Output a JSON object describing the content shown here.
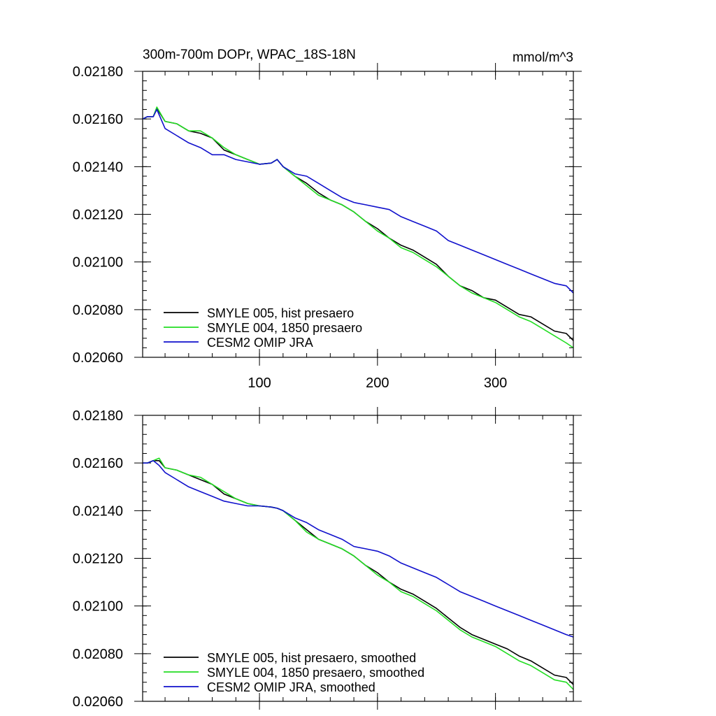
{
  "chart_data": [
    {
      "type": "line",
      "title": "300m-700m DOPr, WPAC_18S-18N",
      "units": "mmol/m^3",
      "xlim": [
        1,
        366
      ],
      "ylim": [
        0.0206,
        0.0218
      ],
      "x_ticks": [
        100,
        200,
        300
      ],
      "x_tick_labels": [
        "100",
        "200",
        "300"
      ],
      "y_ticks": [
        0.0206,
        0.0208,
        0.021,
        0.0212,
        0.0214,
        0.0216,
        0.0218
      ],
      "y_tick_labels": [
        "0.02060",
        "0.02080",
        "0.02100",
        "0.02120",
        "0.02140",
        "0.02160",
        "0.02180"
      ],
      "legend_position": "bottom-left",
      "series": [
        {
          "name": "SMYLE 005, hist presaero",
          "color": "#000000",
          "x": [
            1,
            5,
            10,
            13,
            20,
            30,
            40,
            50,
            60,
            70,
            80,
            90,
            100,
            110,
            115,
            120,
            130,
            140,
            150,
            160,
            170,
            180,
            190,
            200,
            210,
            220,
            230,
            240,
            250,
            260,
            270,
            280,
            290,
            300,
            310,
            320,
            330,
            340,
            350,
            360,
            366
          ],
          "values": [
            0.0216,
            0.02161,
            0.02161,
            0.021645,
            0.02159,
            0.02158,
            0.02155,
            0.02154,
            0.02152,
            0.02147,
            0.02145,
            0.02143,
            0.02141,
            0.021415,
            0.02143,
            0.0214,
            0.02136,
            0.02133,
            0.02129,
            0.02126,
            0.02124,
            0.02121,
            0.02117,
            0.02114,
            0.0211,
            0.02107,
            0.02105,
            0.02102,
            0.02099,
            0.02094,
            0.0209,
            0.02088,
            0.02085,
            0.02084,
            0.02081,
            0.02078,
            0.02077,
            0.02074,
            0.02071,
            0.0207,
            0.02067
          ]
        },
        {
          "name": "SMYLE 004, 1850 presaero",
          "color": "#22dd22",
          "x": [
            1,
            5,
            10,
            13,
            20,
            30,
            40,
            50,
            60,
            70,
            80,
            90,
            100,
            110,
            115,
            120,
            130,
            140,
            150,
            160,
            170,
            180,
            190,
            200,
            210,
            220,
            230,
            240,
            250,
            260,
            270,
            280,
            290,
            300,
            310,
            320,
            330,
            340,
            350,
            360,
            366
          ],
          "values": [
            0.0216,
            0.02161,
            0.02161,
            0.02165,
            0.02159,
            0.02158,
            0.02155,
            0.02155,
            0.02152,
            0.02148,
            0.02145,
            0.02143,
            0.02141,
            0.021415,
            0.02143,
            0.0214,
            0.02136,
            0.02132,
            0.02128,
            0.02126,
            0.02124,
            0.02121,
            0.02117,
            0.02113,
            0.0211,
            0.02106,
            0.02104,
            0.02101,
            0.02098,
            0.02094,
            0.0209,
            0.02087,
            0.02085,
            0.02083,
            0.0208,
            0.02077,
            0.02075,
            0.02072,
            0.02069,
            0.02066,
            0.02064
          ]
        },
        {
          "name": "CESM2 OMIP JRA",
          "color": "#1010cc",
          "x": [
            1,
            5,
            10,
            13,
            20,
            30,
            40,
            50,
            60,
            70,
            80,
            90,
            100,
            110,
            115,
            120,
            130,
            140,
            150,
            160,
            170,
            180,
            190,
            200,
            210,
            220,
            230,
            240,
            250,
            260,
            270,
            280,
            290,
            300,
            310,
            320,
            330,
            340,
            350,
            360,
            366
          ],
          "values": [
            0.0216,
            0.02161,
            0.02161,
            0.02164,
            0.02156,
            0.02153,
            0.0215,
            0.02148,
            0.02145,
            0.02145,
            0.02143,
            0.02142,
            0.02141,
            0.021415,
            0.02143,
            0.0214,
            0.02137,
            0.02136,
            0.02133,
            0.0213,
            0.02127,
            0.02125,
            0.02124,
            0.02123,
            0.02122,
            0.02119,
            0.02117,
            0.02115,
            0.02113,
            0.02109,
            0.02107,
            0.02105,
            0.02103,
            0.02101,
            0.02099,
            0.02097,
            0.02095,
            0.02093,
            0.02091,
            0.0209,
            0.02087
          ]
        }
      ]
    },
    {
      "type": "line",
      "xlim": [
        1,
        366
      ],
      "ylim": [
        0.0206,
        0.0218
      ],
      "x_ticks": [
        100,
        200,
        300
      ],
      "y_ticks": [
        0.0206,
        0.0208,
        0.021,
        0.0212,
        0.0214,
        0.0216,
        0.0218
      ],
      "y_tick_labels": [
        "0.02060",
        "0.02080",
        "0.02100",
        "0.02120",
        "0.02140",
        "0.02160",
        "0.02180"
      ],
      "legend_position": "bottom-left",
      "series": [
        {
          "name": "SMYLE 005, hist presaero, smoothed",
          "color": "#000000",
          "x": [
            1,
            5,
            10,
            15,
            20,
            30,
            40,
            50,
            60,
            70,
            80,
            90,
            100,
            110,
            115,
            120,
            130,
            140,
            150,
            160,
            170,
            180,
            190,
            200,
            210,
            220,
            230,
            240,
            250,
            260,
            270,
            280,
            290,
            300,
            310,
            320,
            330,
            340,
            350,
            360,
            366
          ],
          "values": [
            0.0216,
            0.0216,
            0.02161,
            0.02161,
            0.02158,
            0.02157,
            0.02155,
            0.02153,
            0.02151,
            0.02147,
            0.02145,
            0.02143,
            0.02142,
            0.021415,
            0.02141,
            0.0214,
            0.02136,
            0.02132,
            0.02128,
            0.02126,
            0.02124,
            0.02121,
            0.02117,
            0.02114,
            0.0211,
            0.02107,
            0.02105,
            0.02102,
            0.02099,
            0.02095,
            0.02091,
            0.02088,
            0.02086,
            0.02084,
            0.02082,
            0.02079,
            0.02077,
            0.02074,
            0.02071,
            0.0207,
            0.02067
          ]
        },
        {
          "name": "SMYLE 004, 1850 presaero, smoothed",
          "color": "#22dd22",
          "x": [
            1,
            5,
            10,
            15,
            20,
            30,
            40,
            50,
            60,
            70,
            80,
            90,
            100,
            110,
            115,
            120,
            130,
            140,
            150,
            160,
            170,
            180,
            190,
            200,
            210,
            220,
            230,
            240,
            250,
            260,
            270,
            280,
            290,
            300,
            310,
            320,
            330,
            340,
            350,
            360,
            366
          ],
          "values": [
            0.0216,
            0.0216,
            0.02161,
            0.02162,
            0.02158,
            0.02157,
            0.02155,
            0.02154,
            0.02151,
            0.02148,
            0.02145,
            0.02143,
            0.02142,
            0.021415,
            0.02141,
            0.0214,
            0.02136,
            0.02131,
            0.02128,
            0.02126,
            0.02124,
            0.02121,
            0.02117,
            0.02113,
            0.0211,
            0.02106,
            0.02104,
            0.02101,
            0.02098,
            0.02094,
            0.0209,
            0.02087,
            0.02085,
            0.02083,
            0.0208,
            0.02077,
            0.02075,
            0.02072,
            0.02069,
            0.02068,
            0.02065
          ]
        },
        {
          "name": "CESM2 OMIP JRA, smoothed",
          "color": "#1010cc",
          "x": [
            1,
            5,
            10,
            15,
            20,
            30,
            40,
            50,
            60,
            70,
            80,
            90,
            100,
            110,
            115,
            120,
            130,
            140,
            150,
            160,
            170,
            180,
            190,
            200,
            210,
            220,
            230,
            240,
            250,
            260,
            270,
            280,
            290,
            300,
            310,
            320,
            330,
            340,
            350,
            360,
            366
          ],
          "values": [
            0.0216,
            0.0216,
            0.02161,
            0.02159,
            0.02156,
            0.02153,
            0.0215,
            0.02148,
            0.02146,
            0.02144,
            0.02143,
            0.02142,
            0.02142,
            0.021415,
            0.02141,
            0.0214,
            0.02137,
            0.02135,
            0.02132,
            0.0213,
            0.02128,
            0.02125,
            0.02124,
            0.02123,
            0.02121,
            0.02118,
            0.02116,
            0.02114,
            0.02112,
            0.02109,
            0.02106,
            0.02104,
            0.02102,
            0.021,
            0.02098,
            0.02096,
            0.02094,
            0.02092,
            0.0209,
            0.02088,
            0.02087
          ]
        }
      ]
    }
  ]
}
